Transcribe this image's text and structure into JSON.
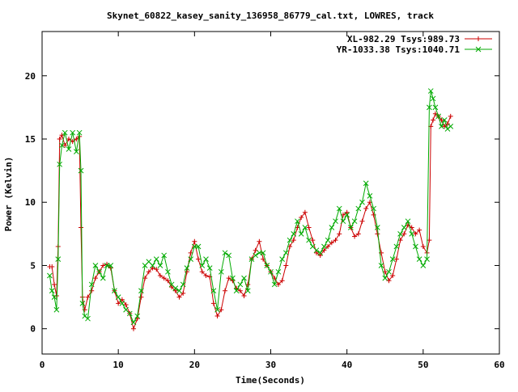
{
  "chart_data": {
    "type": "line",
    "title": "Skynet_60822_kasey_sanity_136958_86779_cal.txt, LOWRES, track",
    "xlabel": "Time(Seconds)",
    "ylabel": "Power (Kelvin)",
    "xlim": [
      0,
      60
    ],
    "ylim": [
      -2,
      23.5
    ],
    "x_ticks": [
      0,
      10,
      20,
      30,
      40,
      50,
      60
    ],
    "y_ticks": [
      0,
      5,
      10,
      15,
      20
    ],
    "grid": false,
    "legend_position": "top-right",
    "series": [
      {
        "name": "XL-982.29 Tsys:989.73",
        "color": "#cc0000",
        "marker": "plus",
        "x": [
          1.0,
          1.3,
          1.6,
          1.9,
          2.1,
          2.3,
          2.6,
          3.0,
          3.5,
          4.0,
          4.5,
          4.9,
          5.1,
          5.3,
          5.6,
          6.0,
          6.5,
          7.0,
          7.5,
          8.0,
          8.5,
          9.0,
          9.5,
          10.0,
          10.5,
          11.0,
          11.5,
          12.0,
          12.5,
          13.0,
          13.5,
          14.0,
          14.5,
          15.0,
          15.5,
          16.0,
          16.5,
          17.0,
          17.5,
          18.0,
          18.5,
          19.0,
          19.5,
          20.0,
          20.5,
          21.0,
          21.5,
          22.0,
          22.5,
          23.0,
          23.5,
          24.0,
          24.5,
          25.0,
          25.5,
          26.0,
          26.5,
          27.0,
          27.5,
          28.0,
          28.5,
          29.0,
          29.5,
          30.0,
          30.5,
          31.0,
          31.5,
          32.0,
          32.5,
          33.0,
          33.5,
          34.0,
          34.5,
          35.0,
          35.5,
          36.0,
          36.5,
          37.0,
          37.5,
          38.0,
          38.5,
          39.0,
          39.5,
          40.0,
          40.5,
          41.0,
          41.5,
          42.0,
          42.5,
          43.0,
          43.5,
          44.0,
          44.5,
          45.0,
          45.5,
          46.0,
          46.5,
          47.0,
          47.5,
          48.0,
          48.5,
          49.0,
          49.5,
          50.0,
          50.5,
          50.8,
          51.0,
          51.3,
          51.6,
          52.0,
          52.4,
          52.8,
          53.2,
          53.6
        ],
        "y": [
          4.9,
          4.9,
          3.5,
          2.6,
          6.5,
          15.0,
          15.3,
          14.5,
          15.0,
          14.8,
          15.0,
          15.2,
          8.0,
          2.5,
          1.5,
          2.5,
          3.0,
          4.0,
          4.5,
          5.0,
          5.1,
          4.8,
          3.0,
          2.0,
          2.3,
          1.9,
          1.2,
          0.0,
          0.8,
          2.5,
          4.0,
          4.5,
          4.8,
          4.7,
          4.2,
          4.0,
          3.8,
          3.3,
          3.0,
          2.5,
          2.8,
          4.5,
          6.0,
          6.9,
          5.5,
          4.5,
          4.2,
          4.1,
          2.0,
          1.0,
          1.5,
          3.0,
          4.0,
          3.8,
          3.2,
          3.0,
          2.6,
          3.5,
          5.5,
          6.2,
          6.9,
          5.5,
          5.0,
          4.5,
          4.0,
          3.5,
          3.8,
          5.0,
          6.5,
          7.0,
          8.0,
          8.8,
          9.2,
          8.0,
          7.0,
          6.0,
          5.8,
          6.2,
          6.5,
          6.8,
          7.0,
          7.5,
          9.0,
          9.2,
          8.0,
          7.3,
          7.5,
          8.5,
          9.5,
          10.0,
          9.0,
          7.5,
          6.0,
          4.5,
          3.8,
          4.2,
          5.5,
          7.0,
          7.5,
          8.2,
          8.0,
          7.5,
          7.8,
          6.5,
          6.0,
          7.0,
          16.0,
          16.5,
          17.0,
          16.8,
          16.5,
          16.0,
          16.2,
          16.8
        ]
      },
      {
        "name": "YR-1033.38 Tsys:1040.71",
        "color": "#00aa00",
        "marker": "cross",
        "x": [
          1.0,
          1.3,
          1.6,
          1.9,
          2.1,
          2.3,
          2.6,
          3.0,
          3.5,
          4.0,
          4.5,
          4.9,
          5.1,
          5.3,
          5.6,
          6.0,
          6.5,
          7.0,
          7.5,
          8.0,
          8.5,
          9.0,
          9.5,
          10.0,
          10.5,
          11.0,
          11.5,
          12.0,
          12.5,
          13.0,
          13.5,
          14.0,
          14.5,
          15.0,
          15.5,
          16.0,
          16.5,
          17.0,
          17.5,
          18.0,
          18.5,
          19.0,
          19.5,
          20.0,
          20.5,
          21.0,
          21.5,
          22.0,
          22.5,
          23.0,
          23.5,
          24.0,
          24.5,
          25.0,
          25.5,
          26.0,
          26.5,
          27.0,
          27.5,
          28.0,
          28.5,
          29.0,
          29.5,
          30.0,
          30.5,
          31.0,
          31.5,
          32.0,
          32.5,
          33.0,
          33.5,
          34.0,
          34.5,
          35.0,
          35.5,
          36.0,
          36.5,
          37.0,
          37.5,
          38.0,
          38.5,
          39.0,
          39.5,
          40.0,
          40.5,
          41.0,
          41.5,
          42.0,
          42.5,
          43.0,
          43.5,
          44.0,
          44.5,
          45.0,
          45.5,
          46.0,
          46.5,
          47.0,
          47.5,
          48.0,
          48.5,
          49.0,
          49.5,
          50.0,
          50.5,
          50.8,
          51.0,
          51.3,
          51.6,
          52.0,
          52.4,
          52.8,
          53.2,
          53.6
        ],
        "y": [
          4.2,
          3.0,
          2.5,
          1.5,
          5.5,
          13.0,
          14.5,
          15.5,
          14.2,
          15.5,
          14.0,
          15.5,
          12.5,
          2.0,
          1.0,
          0.8,
          3.5,
          5.0,
          4.5,
          4.0,
          5.0,
          5.0,
          3.0,
          2.5,
          2.0,
          1.5,
          1.2,
          0.5,
          1.0,
          3.0,
          5.0,
          5.3,
          5.0,
          5.5,
          5.0,
          5.8,
          4.5,
          3.5,
          3.2,
          3.0,
          3.5,
          4.8,
          5.5,
          6.5,
          6.5,
          5.0,
          5.5,
          4.8,
          3.0,
          1.5,
          4.5,
          6.0,
          5.8,
          4.0,
          3.0,
          3.5,
          4.0,
          3.0,
          5.5,
          5.8,
          6.0,
          6.0,
          5.0,
          4.5,
          3.5,
          4.5,
          5.5,
          6.0,
          7.0,
          7.5,
          8.5,
          7.5,
          8.0,
          7.0,
          6.5,
          6.2,
          6.0,
          6.5,
          7.0,
          8.0,
          8.5,
          9.5,
          8.5,
          9.0,
          8.0,
          8.5,
          9.5,
          10.0,
          11.5,
          10.5,
          9.5,
          8.0,
          5.0,
          4.0,
          4.5,
          5.5,
          6.5,
          7.5,
          8.0,
          8.5,
          7.5,
          6.5,
          5.5,
          5.0,
          5.5,
          17.5,
          18.8,
          18.2,
          17.5,
          16.8,
          16.0,
          16.5,
          15.8,
          16.0
        ]
      }
    ]
  }
}
